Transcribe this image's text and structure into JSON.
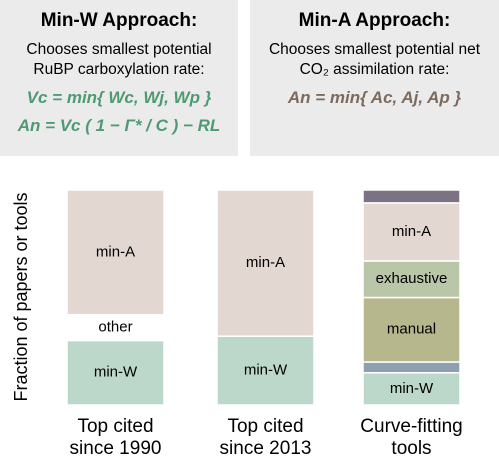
{
  "left_box": {
    "title": "Min-W Approach:",
    "description": "Chooses smallest potential RuBP carboxylation rate:",
    "equations": [
      "Vc = min{ Wc, Wj, Wp }",
      "An = Vc ( 1 − Γ* / C ) − RL"
    ]
  },
  "right_box": {
    "title": "Min-A Approach:",
    "description": "Chooses smallest potential net CO₂ assimilation rate:",
    "equations": [
      "An = min{ Ac, Aj, Ap }"
    ]
  },
  "chart_data": {
    "type": "stacked_bar",
    "y_label": "Fraction of papers or tools",
    "categories": [
      "Top cited since 1990",
      "Top cited since 2013",
      "Curve-fitting tools"
    ],
    "ylim": [
      0,
      1
    ],
    "series": [
      {
        "name": "min-W",
        "color": "#bcd8cb",
        "values": [
          0.3,
          0.32,
          0.15
        ]
      },
      {
        "name": null,
        "color": "#8d9fb0",
        "values": [
          null,
          null,
          0.05
        ]
      },
      {
        "name": "manual",
        "color": "#b6b78c",
        "values": [
          null,
          null,
          0.3
        ]
      },
      {
        "name": "exhaustive",
        "color": "#bac6a8",
        "values": [
          null,
          null,
          0.17
        ]
      },
      {
        "name": "other",
        "color": "#ffffff",
        "values": [
          0.12,
          null,
          null
        ]
      },
      {
        "name": "min-A",
        "color": "#e3d8d1",
        "values": [
          0.58,
          0.68,
          0.27
        ]
      },
      {
        "name": null,
        "color": "#7b7383",
        "values": [
          null,
          null,
          0.06
        ]
      }
    ]
  }
}
